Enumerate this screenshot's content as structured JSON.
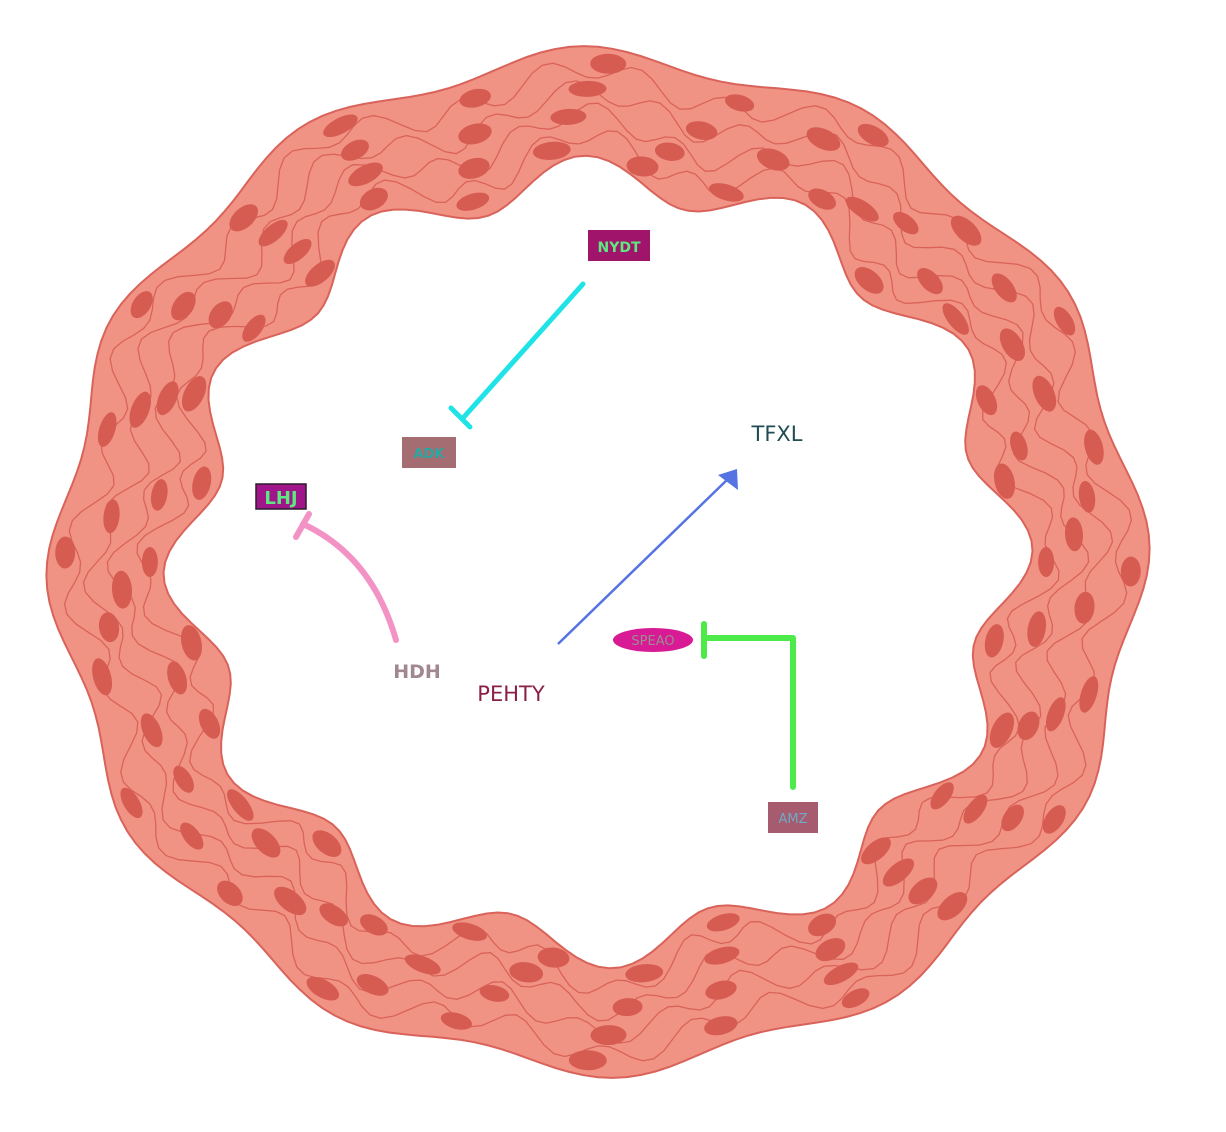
{
  "colors": {
    "ring_fill": "#f19384",
    "ring_stroke": "#d9635a",
    "nucleus": "#d65c52",
    "inhibit_cyan": "#1fe3e6",
    "activate_blue": "#5573e3",
    "inhibit_pink": "#f393c5",
    "inhibit_green": "#4ceb4a"
  },
  "nodes": {
    "nydt": {
      "label": "NYDT",
      "fill": "#a0156b",
      "text": "#5ee87f"
    },
    "adk": {
      "label": "ADK",
      "fill": "#a46d72",
      "text": "#2aa7a0"
    },
    "tfxl": {
      "label": "TFXL",
      "text": "#1f4d52"
    },
    "lhj": {
      "label": "LHJ",
      "fill": "#a0158a",
      "stroke": "#2b1b2b",
      "text": "#5ee87f"
    },
    "hdh": {
      "label": "HDH",
      "text": "#a08790"
    },
    "pehty": {
      "label": "PEHTY",
      "text": "#8a1f48"
    },
    "speao": {
      "label": "SPEAO",
      "fill": "#d81b94",
      "text": "#9a8c91"
    },
    "amz": {
      "label": "AMZ",
      "fill": "#a65c6e",
      "text": "#6fa9c8"
    }
  },
  "edges": [
    {
      "from": "NYDT",
      "to": "ADK",
      "type": "inhibition"
    },
    {
      "from": "PEHTY",
      "to": "TFXL",
      "type": "activation"
    },
    {
      "from": "HDH",
      "to": "LHJ",
      "type": "inhibition"
    },
    {
      "from": "AMZ",
      "to": "SPEAO",
      "type": "inhibition"
    }
  ]
}
